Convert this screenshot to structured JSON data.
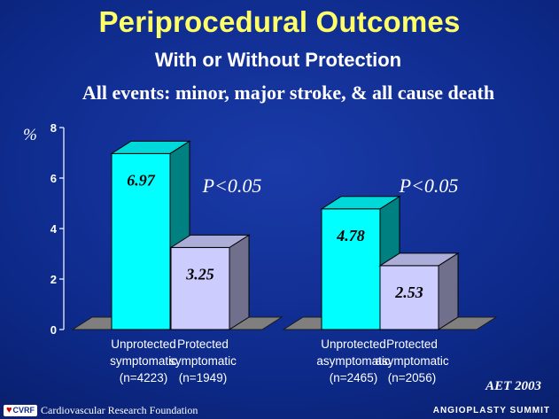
{
  "slide": {
    "title": "Periprocedural Outcomes",
    "subtitle": "With or Without Protection",
    "events_line": "All events: minor, major stroke, & all cause death",
    "source": "AET 2003",
    "logo_text": "CVRF",
    "foundation": "Cardiovascular Research Foundation",
    "event_name": "ANGIOPLASTY SUMMIT"
  },
  "chart_data": {
    "type": "bar",
    "ylabel": "%",
    "ylim": [
      0,
      8
    ],
    "yticks": [
      "0",
      "2",
      "4",
      "6",
      "8"
    ],
    "bars": [
      {
        "value": 6.97,
        "label": "6.97",
        "category": [
          "Unprotected",
          "symptomatic",
          "(n=4223)"
        ],
        "color": "#00ffff"
      },
      {
        "value": 3.25,
        "label": "3.25",
        "category": [
          "Protected",
          "symptomatic",
          "(n=1949)"
        ],
        "color": "#ccccff"
      },
      {
        "value": 4.78,
        "label": "4.78",
        "category": [
          "Unprotected",
          "asymptomatic",
          "(n=2465)"
        ],
        "color": "#00ffff"
      },
      {
        "value": 2.53,
        "label": "2.53",
        "category": [
          "Protected",
          "asymptomatic",
          "(n=2056)"
        ],
        "color": "#ccccff"
      }
    ],
    "annotations": [
      "P<0.05",
      "P<0.05"
    ],
    "grid": false,
    "legend": "none"
  }
}
